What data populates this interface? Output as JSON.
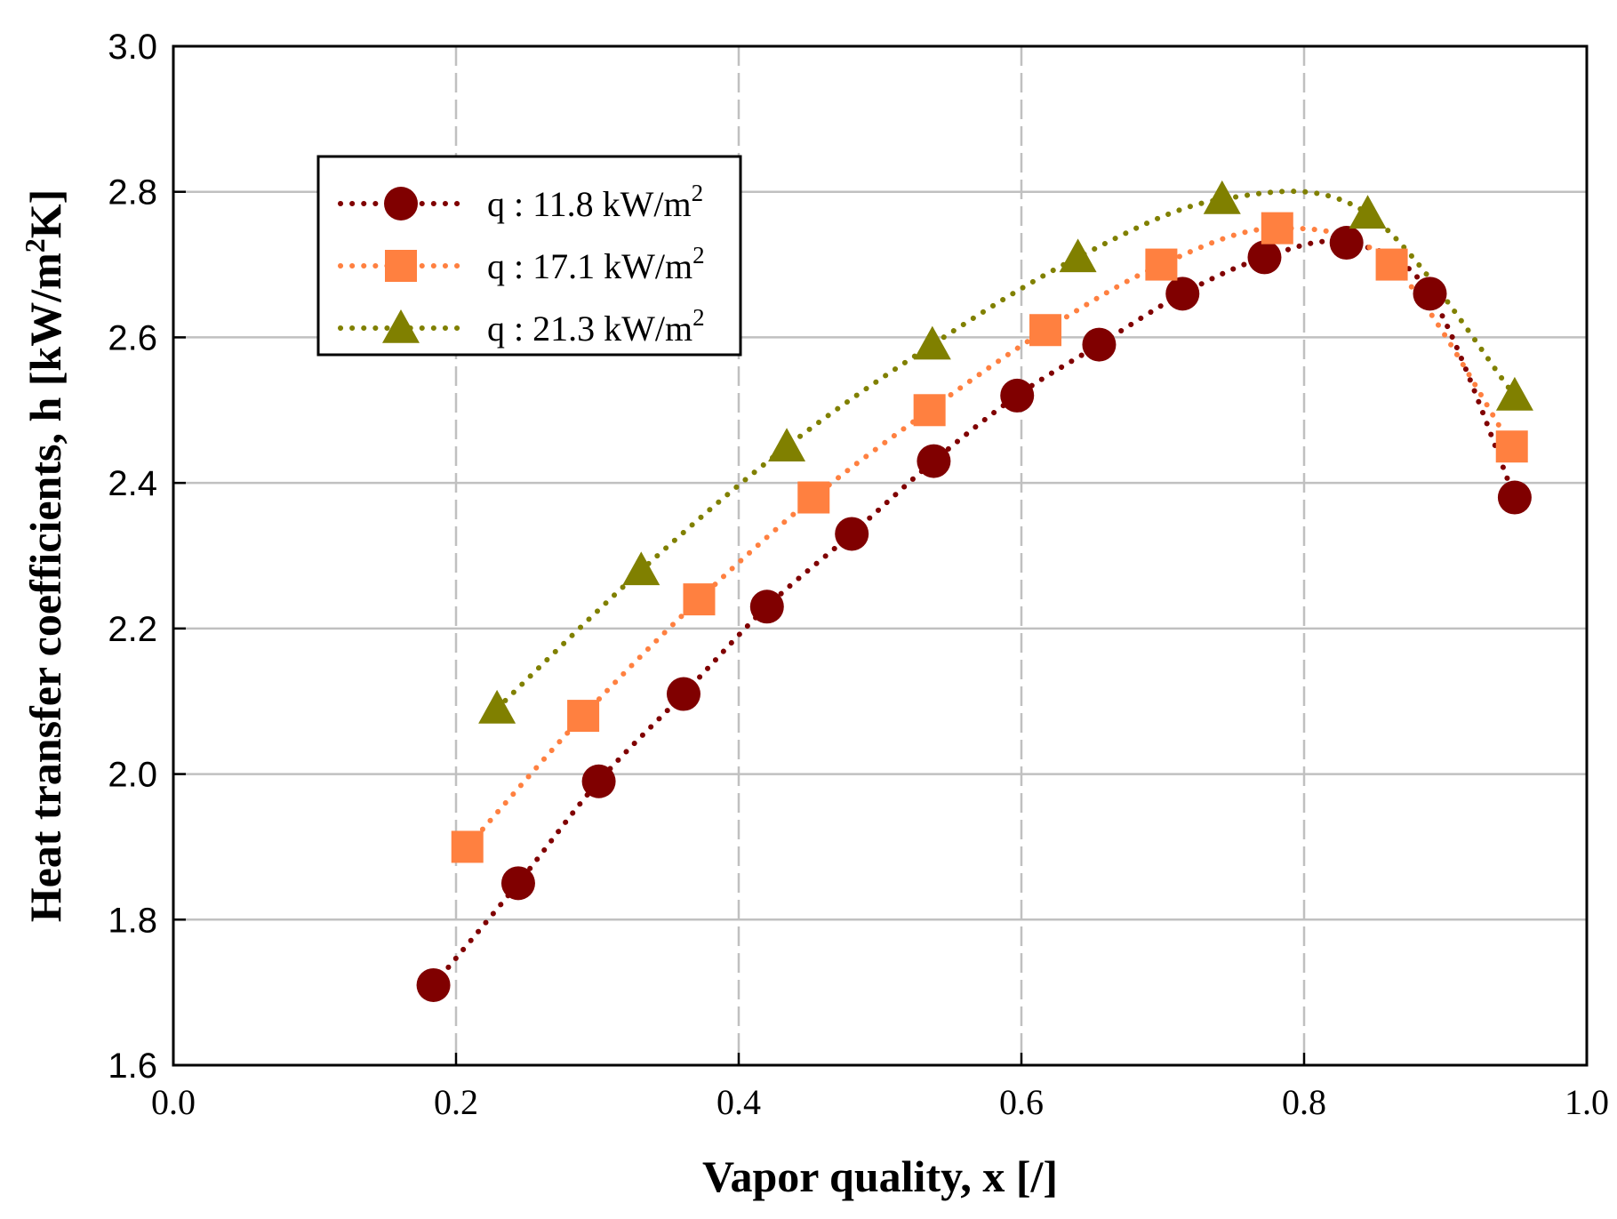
{
  "chart_data": {
    "type": "scatter",
    "title": "",
    "xlabel": "Vapor quality, x [/]",
    "ylabel": {
      "prefix": "Heat transfer coefficients, h [kW/m",
      "sup": "2",
      "suffix": "K]"
    },
    "xlim": [
      0.0,
      1.0
    ],
    "ylim": [
      1.6,
      3.0
    ],
    "x_ticks": [
      "0.0",
      "0.2",
      "0.4",
      "0.6",
      "0.8",
      "1.0"
    ],
    "y_ticks": [
      "1.6",
      "1.8",
      "2.0",
      "2.2",
      "2.4",
      "2.6",
      "2.8",
      "3.0"
    ],
    "grid": true,
    "legend_position": "top-left",
    "series": [
      {
        "name": "q : 11.8 kW/m",
        "name_sup": "2",
        "marker": "circle",
        "color": "#800000",
        "x": [
          0.184,
          0.244,
          0.301,
          0.361,
          0.42,
          0.48,
          0.538,
          0.597,
          0.655,
          0.714,
          0.772,
          0.83,
          0.889,
          0.949
        ],
        "y": [
          1.71,
          1.85,
          1.99,
          2.11,
          2.23,
          2.33,
          2.43,
          2.52,
          2.59,
          2.66,
          2.71,
          2.73,
          2.66,
          2.38
        ]
      },
      {
        "name": "q : 17.1  kW/m",
        "name_sup": "2",
        "marker": "square",
        "color": "#FF8040",
        "x": [
          0.208,
          0.29,
          0.372,
          0.453,
          0.535,
          0.617,
          0.699,
          0.781,
          0.862,
          0.947
        ],
        "y": [
          1.9,
          2.08,
          2.24,
          2.38,
          2.5,
          2.61,
          2.7,
          2.75,
          2.7,
          2.45
        ]
      },
      {
        "name": "q :  21.3 kW/m",
        "name_sup": "2",
        "marker": "triangle",
        "color": "#808000",
        "x": [
          0.229,
          0.331,
          0.434,
          0.537,
          0.64,
          0.742,
          0.845,
          0.949
        ],
        "y": [
          2.09,
          2.28,
          2.45,
          2.59,
          2.71,
          2.79,
          2.77,
          2.52
        ]
      }
    ]
  }
}
